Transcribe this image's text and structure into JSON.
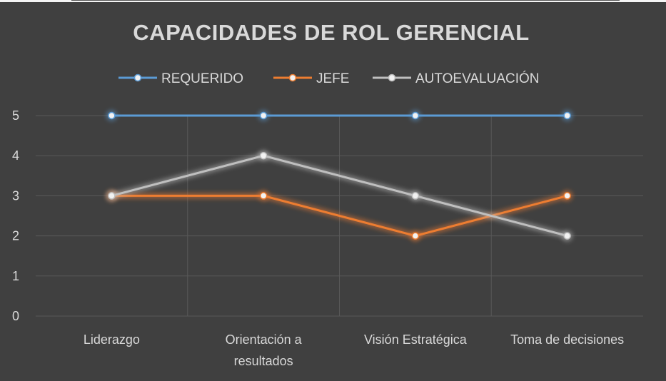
{
  "chart_data": {
    "type": "line",
    "title": "CAPACIDADES DE ROL GERENCIAL",
    "categories": [
      [
        "Liderazgo"
      ],
      [
        "Orientación a",
        "resultados"
      ],
      [
        "Visión Estratégica"
      ],
      [
        "Toma de decisiones"
      ]
    ],
    "ylim": [
      0,
      5
    ],
    "yticks": [
      "0",
      "1",
      "2",
      "3",
      "4",
      "5"
    ],
    "xlabel": "",
    "ylabel": "",
    "grid": true,
    "legend_position": "top",
    "series": [
      {
        "name": "REQUERIDO",
        "values": [
          5,
          5,
          5,
          5
        ],
        "color": "#5b9bd5"
      },
      {
        "name": "JEFE",
        "values": [
          3,
          3,
          2,
          3
        ],
        "color": "#ed7d31"
      },
      {
        "name": "AUTOEVALUACIÓN",
        "values": [
          3,
          4,
          3,
          2
        ],
        "color": "#bfbfbf"
      }
    ]
  }
}
